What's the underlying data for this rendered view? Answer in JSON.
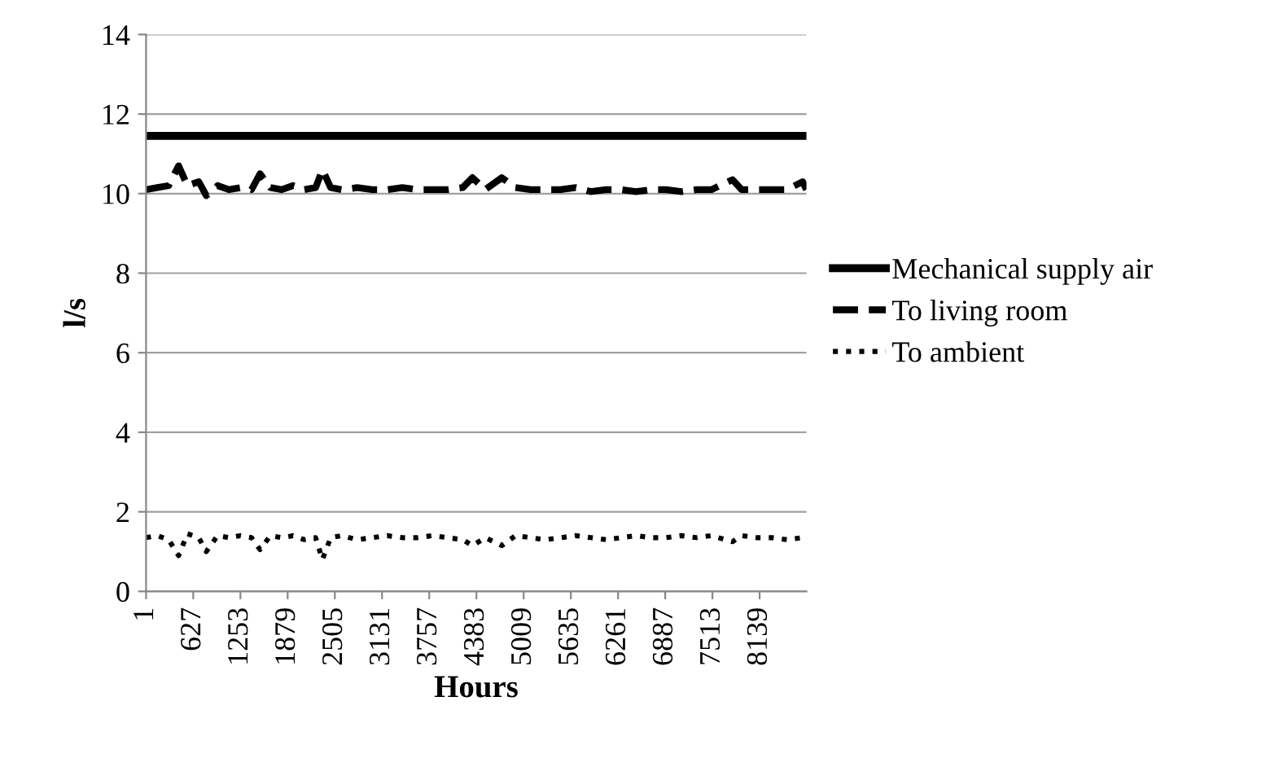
{
  "chart_data": {
    "type": "line",
    "xlabel": "Hours",
    "ylabel": "l/s",
    "xlim": [
      1,
      8760
    ],
    "xticks": [
      1,
      627,
      1253,
      1879,
      2505,
      3131,
      3757,
      4383,
      5009,
      5635,
      6261,
      6887,
      7513,
      8139
    ],
    "ylim": [
      0,
      14
    ],
    "yticks": [
      0,
      2,
      4,
      6,
      8,
      10,
      12,
      14
    ],
    "grid": "y",
    "legend": "right",
    "marker": "none",
    "series": [
      {
        "name": "Mechanical supply air",
        "color": "#000000",
        "line_style": "solid",
        "x": [
          1,
          8760
        ],
        "values": [
          11.45,
          11.45
        ]
      },
      {
        "name": "To living room",
        "color": "#000000",
        "line_style": "dashed",
        "x": [
          1,
          150,
          300,
          433,
          550,
          700,
          800,
          950,
          1100,
          1250,
          1400,
          1513,
          1650,
          1800,
          1950,
          2100,
          2250,
          2340,
          2450,
          2600,
          2800,
          3000,
          3200,
          3400,
          3600,
          3800,
          4000,
          4200,
          4330,
          4500,
          4720,
          4900,
          5100,
          5300,
          5500,
          5700,
          5900,
          6100,
          6300,
          6500,
          6700,
          6900,
          7100,
          7300,
          7500,
          7780,
          7900,
          8100,
          8300,
          8500,
          8710,
          8760
        ],
        "values": [
          10.1,
          10.15,
          10.2,
          10.7,
          10.2,
          10.3,
          9.95,
          10.2,
          10.1,
          10.15,
          10.1,
          10.5,
          10.15,
          10.1,
          10.2,
          10.1,
          10.15,
          10.6,
          10.15,
          10.1,
          10.15,
          10.1,
          10.1,
          10.15,
          10.1,
          10.1,
          10.1,
          10.15,
          10.4,
          10.1,
          10.4,
          10.15,
          10.1,
          10.1,
          10.1,
          10.15,
          10.05,
          10.1,
          10.1,
          10.05,
          10.1,
          10.1,
          10.05,
          10.1,
          10.1,
          10.35,
          10.1,
          10.1,
          10.1,
          10.1,
          10.3,
          10.1
        ]
      },
      {
        "name": "To ambient",
        "color": "#000000",
        "line_style": "dotted",
        "x": [
          1,
          150,
          300,
          433,
          550,
          700,
          800,
          950,
          1100,
          1250,
          1400,
          1513,
          1650,
          1800,
          1950,
          2100,
          2250,
          2340,
          2450,
          2600,
          2800,
          3000,
          3200,
          3400,
          3600,
          3800,
          4000,
          4200,
          4330,
          4500,
          4720,
          4900,
          5100,
          5300,
          5500,
          5700,
          5900,
          6100,
          6300,
          6500,
          6700,
          6900,
          7100,
          7300,
          7500,
          7780,
          7900,
          8100,
          8300,
          8500,
          8710,
          8760
        ],
        "values": [
          1.35,
          1.4,
          1.3,
          0.9,
          1.45,
          1.35,
          1.0,
          1.4,
          1.35,
          1.4,
          1.35,
          1.05,
          1.4,
          1.35,
          1.4,
          1.3,
          1.35,
          0.8,
          1.35,
          1.4,
          1.3,
          1.35,
          1.4,
          1.35,
          1.35,
          1.4,
          1.35,
          1.3,
          1.15,
          1.35,
          1.15,
          1.4,
          1.35,
          1.3,
          1.35,
          1.4,
          1.35,
          1.3,
          1.35,
          1.4,
          1.35,
          1.35,
          1.4,
          1.35,
          1.4,
          1.25,
          1.4,
          1.35,
          1.35,
          1.3,
          1.35,
          1.3
        ]
      }
    ]
  }
}
